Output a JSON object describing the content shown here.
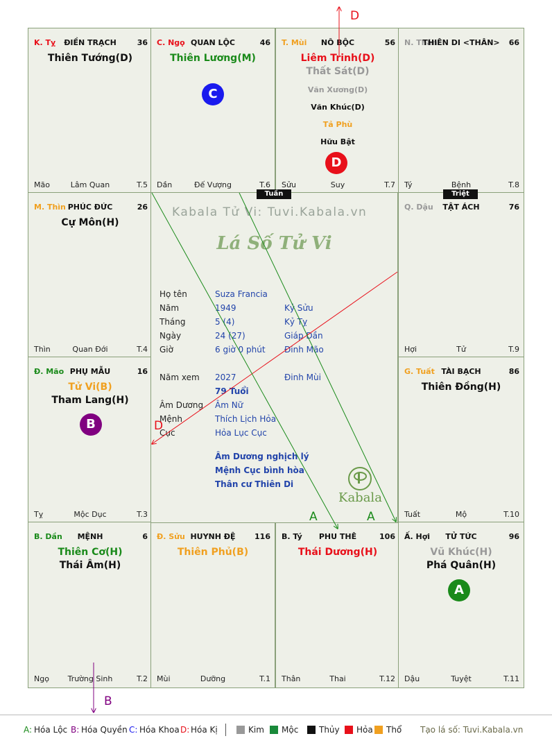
{
  "cells": [
    {
      "id": "ty",
      "can": "K. Tỵ",
      "can_color": "#e8101a",
      "name": "ĐIỀN TRẠCH",
      "num": "36",
      "stars": [
        {
          "t": "Thiên Tướng(D)",
          "c": "#111"
        }
      ],
      "minor": [],
      "bl": "Mão",
      "bc": "Lâm Quan",
      "br": "T.5"
    },
    {
      "id": "ngo",
      "can": "C. Ngọ",
      "can_color": "#e8101a",
      "name": "QUAN LỘC",
      "num": "46",
      "stars": [
        {
          "t": "Thiên Lương(M)",
          "c": "#1a8a1a"
        }
      ],
      "minor": [],
      "bl": "Dần",
      "bc": "Đế Vượng",
      "br": "T.6"
    },
    {
      "id": "mui",
      "can": "T. Mùi",
      "can_color": "#f0a020",
      "name": "NÔ BỘC",
      "num": "56",
      "stars": [
        {
          "t": "Liêm Trinh(D)",
          "c": "#e8101a"
        },
        {
          "t": "Thất Sát(D)",
          "c": "#999"
        }
      ],
      "minor": [
        {
          "t": "Văn Xương(D)",
          "c": "#999"
        },
        {
          "t": "Văn Khúc(D)",
          "c": "#111"
        },
        {
          "t": "Tả Phù",
          "c": "#f0a020"
        },
        {
          "t": "Hữu Bật",
          "c": "#111"
        }
      ],
      "bl": "Sửu",
      "bc": "Suy",
      "br": "T.7"
    },
    {
      "id": "than",
      "can": "N. Thân",
      "can_color": "#999",
      "name": "THIÊN DI <THÂN>",
      "num": "66",
      "stars": [],
      "minor": [],
      "bl": "Tý",
      "bc": "Bệnh",
      "br": "T.8"
    },
    {
      "id": "thin",
      "can": "M. Thìn",
      "can_color": "#f0a020",
      "name": "PHÚC ĐỨC",
      "num": "26",
      "stars": [
        {
          "t": "Cự Môn(H)",
          "c": "#111"
        }
      ],
      "minor": [],
      "bl": "Thìn",
      "bc": "Quan Đới",
      "br": "T.4"
    },
    {
      "id": "dau",
      "can": "Q. Dậu",
      "can_color": "#999",
      "name": "TẬT ÁCH",
      "num": "76",
      "stars": [],
      "minor": [],
      "bl": "Hợi",
      "bc": "Tử",
      "br": "T.9"
    },
    {
      "id": "mao",
      "can": "Đ. Mão",
      "can_color": "#1a8a1a",
      "name": "PHỤ MẪU",
      "num": "16",
      "stars": [
        {
          "t": "Tử Vi(B)",
          "c": "#f0a020"
        },
        {
          "t": "Tham Lang(H)",
          "c": "#111"
        }
      ],
      "minor": [],
      "bl": "Tỵ",
      "bc": "Mộc Dục",
      "br": "T.3"
    },
    {
      "id": "tuat",
      "can": "G. Tuất",
      "can_color": "#f0a020",
      "name": "TÀI BẠCH",
      "num": "86",
      "stars": [
        {
          "t": "Thiên Đồng(H)",
          "c": "#111"
        }
      ],
      "minor": [],
      "bl": "Tuất",
      "bc": "Mộ",
      "br": "T.10"
    },
    {
      "id": "dan",
      "can": "B. Dần",
      "can_color": "#1a8a1a",
      "name": "MỆNH",
      "num": "6",
      "stars": [
        {
          "t": "Thiên Cơ(H)",
          "c": "#1a8a1a"
        },
        {
          "t": "Thái Âm(H)",
          "c": "#111"
        }
      ],
      "minor": [],
      "bl": "Ngọ",
      "bc": "Trường Sinh",
      "br": "T.2"
    },
    {
      "id": "suu",
      "can": "Đ. Sửu",
      "can_color": "#f0a020",
      "name": "HUYNH ĐỆ",
      "num": "116",
      "stars": [
        {
          "t": "Thiên Phủ(B)",
          "c": "#f0a020"
        }
      ],
      "minor": [],
      "bl": "Mùi",
      "bc": "Dưỡng",
      "br": "T.1"
    },
    {
      "id": "ty2",
      "can": "B. Tý",
      "can_color": "#111",
      "name": "PHU THÊ",
      "num": "106",
      "stars": [
        {
          "t": "Thái Dương(H)",
          "c": "#e8101a"
        }
      ],
      "minor": [],
      "bl": "Thân",
      "bc": "Thai",
      "br": "T.12"
    },
    {
      "id": "hoi",
      "can": "Ấ. Hợi",
      "can_color": "#111",
      "name": "TỬ TỨC",
      "num": "96",
      "stars": [
        {
          "t": "Vũ Khúc(H)",
          "c": "#999"
        },
        {
          "t": "Phá Quân(H)",
          "c": "#111"
        }
      ],
      "minor": [],
      "bl": "Dậu",
      "bc": "Tuyệt",
      "br": "T.11"
    }
  ],
  "tags": {
    "tuan": "Tuần",
    "triet": "Triệt"
  },
  "circles": {
    "c": "C",
    "d": "D",
    "b": "B",
    "a": "A"
  },
  "arrow_labels": {
    "d_top": "D",
    "d_mid": "D",
    "b_bottom": "B",
    "a1": "A",
    "a2": "A"
  },
  "center": {
    "watermark": "Kabala Tử Vi: Tuvi.Kabala.vn",
    "title": "Lá Số Tử Vi",
    "rows": [
      {
        "label": "Họ tên",
        "v1": "Suza Francia",
        "v2": ""
      },
      {
        "label": "Năm",
        "v1": "1949",
        "v2": "Kỷ Sửu"
      },
      {
        "label": "Tháng",
        "v1": "5  (4)",
        "v2": "Kỷ Tỵ"
      },
      {
        "label": "Ngày",
        "v1": "24  (27)",
        "v2": "Giáp Dần"
      },
      {
        "label": "Giờ",
        "v1": "6 giờ 0 phút",
        "v2": "Đinh Mão"
      },
      {
        "label": "Năm xem",
        "v1": "2027",
        "v2": "Đinh Mùi"
      },
      {
        "label": "",
        "v1": "79 Tuổi",
        "v2": ""
      },
      {
        "label": "Âm Dương",
        "v1": "Âm Nữ",
        "v2": ""
      },
      {
        "label": "Mệnh",
        "v1": "Thích Lịch Hỏa",
        "v2": ""
      },
      {
        "label": "Cục",
        "v1": "Hỏa Lục Cục",
        "v2": ""
      }
    ],
    "notes": [
      "Âm Dương nghịch lý",
      "Mệnh Cục bình hòa",
      "Thân cư Thiên Di"
    ],
    "logo": "Kabala"
  },
  "legend": {
    "items": [
      {
        "key": "A:",
        "label": "Hóa Lộc",
        "color": "#1a8a1a"
      },
      {
        "key": "B:",
        "label": "Hóa Quyền",
        "color": "#800080"
      },
      {
        "key": "C:",
        "label": "Hóa Khoa",
        "color": "#1a1aee"
      },
      {
        "key": "D:",
        "label": "Hóa Kị",
        "color": "#e8101a"
      }
    ],
    "elements": [
      {
        "label": "Kim",
        "color": "#999999"
      },
      {
        "label": "Mộc",
        "color": "#1a8a3a"
      },
      {
        "label": "Thủy",
        "color": "#111111"
      },
      {
        "label": "Hỏa",
        "color": "#e8101a"
      },
      {
        "label": "Thổ",
        "color": "#f0a020"
      }
    ],
    "credit": "Tạo lá số: Tuvi.Kabala.vn"
  }
}
